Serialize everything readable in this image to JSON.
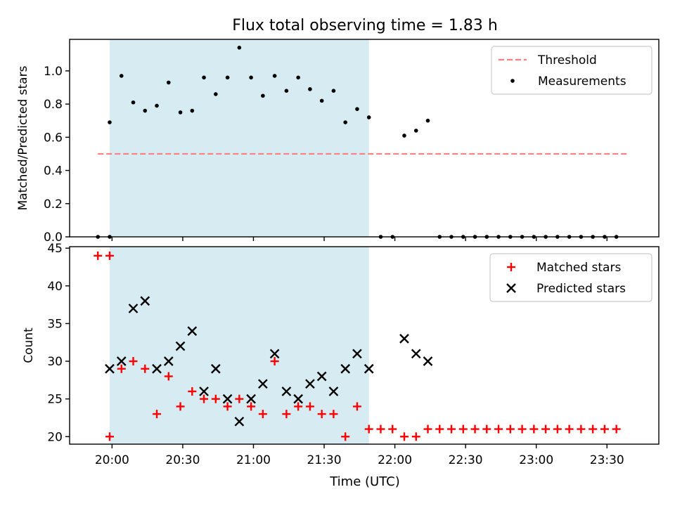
{
  "figure": {
    "title": "Flux total observing time = 1.83 h",
    "xlabel": "Time (UTC)"
  },
  "chart_data": [
    {
      "type": "scatter",
      "panel": "top",
      "title": "Flux total observing time = 1.83 h",
      "ylabel": "Matched/Predicted stars",
      "xlabel": "",
      "xlim": [
        "19:42",
        "23:52"
      ],
      "ylim": [
        0.0,
        1.19
      ],
      "yticks": [
        0.0,
        0.2,
        0.4,
        0.6,
        0.8,
        1.0
      ],
      "xticks": [
        "20:00",
        "20:30",
        "21:00",
        "21:30",
        "22:00",
        "22:30",
        "23:00",
        "23:30"
      ],
      "shaded_span": [
        "19:59",
        "21:49"
      ],
      "shaded_color": "#add8e6",
      "legend_position": "top-right",
      "threshold": {
        "name": "Threshold",
        "value": 0.5,
        "x_from": "19:54",
        "x_to": "23:39",
        "color": "#ff7f7f",
        "style": "dashed"
      },
      "series": [
        {
          "name": "Measurements",
          "marker": "dot",
          "color": "#000000",
          "points": [
            {
              "x": "19:54",
              "y": 0.0
            },
            {
              "x": "19:59",
              "y": 0.0
            },
            {
              "x": "19:59",
              "y": 0.69
            },
            {
              "x": "20:04",
              "y": 0.97
            },
            {
              "x": "20:09",
              "y": 0.81
            },
            {
              "x": "20:14",
              "y": 0.76
            },
            {
              "x": "20:19",
              "y": 0.79
            },
            {
              "x": "20:24",
              "y": 0.93
            },
            {
              "x": "20:29",
              "y": 0.75
            },
            {
              "x": "20:34",
              "y": 0.76
            },
            {
              "x": "20:39",
              "y": 0.96
            },
            {
              "x": "20:44",
              "y": 0.86
            },
            {
              "x": "20:49",
              "y": 0.96
            },
            {
              "x": "20:54",
              "y": 1.14
            },
            {
              "x": "20:59",
              "y": 0.96
            },
            {
              "x": "21:04",
              "y": 0.85
            },
            {
              "x": "21:09",
              "y": 0.97
            },
            {
              "x": "21:14",
              "y": 0.88
            },
            {
              "x": "21:19",
              "y": 0.96
            },
            {
              "x": "21:24",
              "y": 0.89
            },
            {
              "x": "21:29",
              "y": 0.82
            },
            {
              "x": "21:34",
              "y": 0.88
            },
            {
              "x": "21:39",
              "y": 0.69
            },
            {
              "x": "21:44",
              "y": 0.77
            },
            {
              "x": "21:49",
              "y": 0.72
            },
            {
              "x": "21:54",
              "y": 0.0
            },
            {
              "x": "21:59",
              "y": 0.0
            },
            {
              "x": "22:04",
              "y": 0.61
            },
            {
              "x": "22:09",
              "y": 0.64
            },
            {
              "x": "22:14",
              "y": 0.7
            },
            {
              "x": "22:19",
              "y": 0.0
            },
            {
              "x": "22:24",
              "y": 0.0
            },
            {
              "x": "22:29",
              "y": 0.0
            },
            {
              "x": "22:34",
              "y": 0.0
            },
            {
              "x": "22:39",
              "y": 0.0
            },
            {
              "x": "22:44",
              "y": 0.0
            },
            {
              "x": "22:49",
              "y": 0.0
            },
            {
              "x": "22:54",
              "y": 0.0
            },
            {
              "x": "22:59",
              "y": 0.0
            },
            {
              "x": "23:04",
              "y": 0.0
            },
            {
              "x": "23:09",
              "y": 0.0
            },
            {
              "x": "23:14",
              "y": 0.0
            },
            {
              "x": "23:19",
              "y": 0.0
            },
            {
              "x": "23:24",
              "y": 0.0
            },
            {
              "x": "23:29",
              "y": 0.0
            },
            {
              "x": "23:34",
              "y": 0.0
            }
          ]
        }
      ]
    },
    {
      "type": "scatter",
      "panel": "bottom",
      "title": "",
      "ylabel": "Count",
      "xlabel": "Time (UTC)",
      "xlim": [
        "19:42",
        "23:52"
      ],
      "ylim": [
        19.0,
        45.2
      ],
      "yticks": [
        20,
        25,
        30,
        35,
        40,
        45
      ],
      "xticks": [
        "20:00",
        "20:30",
        "21:00",
        "21:30",
        "22:00",
        "22:30",
        "23:00",
        "23:30"
      ],
      "shaded_span": [
        "19:59",
        "21:49"
      ],
      "shaded_color": "#add8e6",
      "legend_position": "top-right",
      "series": [
        {
          "name": "Matched stars",
          "marker": "plus",
          "color": "#ff0000",
          "points": [
            {
              "x": "19:54",
              "y": 44
            },
            {
              "x": "19:59",
              "y": 44
            },
            {
              "x": "19:59",
              "y": 20
            },
            {
              "x": "20:04",
              "y": 29
            },
            {
              "x": "20:09",
              "y": 30
            },
            {
              "x": "20:14",
              "y": 29
            },
            {
              "x": "20:19",
              "y": 23
            },
            {
              "x": "20:24",
              "y": 28
            },
            {
              "x": "20:29",
              "y": 24
            },
            {
              "x": "20:34",
              "y": 26
            },
            {
              "x": "20:39",
              "y": 25
            },
            {
              "x": "20:44",
              "y": 25
            },
            {
              "x": "20:49",
              "y": 24
            },
            {
              "x": "20:54",
              "y": 25
            },
            {
              "x": "20:59",
              "y": 24
            },
            {
              "x": "21:04",
              "y": 23
            },
            {
              "x": "21:09",
              "y": 30
            },
            {
              "x": "21:14",
              "y": 23
            },
            {
              "x": "21:19",
              "y": 24
            },
            {
              "x": "21:24",
              "y": 24
            },
            {
              "x": "21:29",
              "y": 23
            },
            {
              "x": "21:34",
              "y": 23
            },
            {
              "x": "21:39",
              "y": 20
            },
            {
              "x": "21:44",
              "y": 24
            },
            {
              "x": "21:49",
              "y": 21
            },
            {
              "x": "21:54",
              "y": 21
            },
            {
              "x": "21:59",
              "y": 21
            },
            {
              "x": "22:04",
              "y": 20
            },
            {
              "x": "22:09",
              "y": 20
            },
            {
              "x": "22:14",
              "y": 21
            },
            {
              "x": "22:19",
              "y": 21
            },
            {
              "x": "22:24",
              "y": 21
            },
            {
              "x": "22:29",
              "y": 21
            },
            {
              "x": "22:34",
              "y": 21
            },
            {
              "x": "22:39",
              "y": 21
            },
            {
              "x": "22:44",
              "y": 21
            },
            {
              "x": "22:49",
              "y": 21
            },
            {
              "x": "22:54",
              "y": 21
            },
            {
              "x": "22:59",
              "y": 21
            },
            {
              "x": "23:04",
              "y": 21
            },
            {
              "x": "23:09",
              "y": 21
            },
            {
              "x": "23:14",
              "y": 21
            },
            {
              "x": "23:19",
              "y": 21
            },
            {
              "x": "23:24",
              "y": 21
            },
            {
              "x": "23:29",
              "y": 21
            },
            {
              "x": "23:34",
              "y": 21
            }
          ]
        },
        {
          "name": "Predicted stars",
          "marker": "x",
          "color": "#000000",
          "points": [
            {
              "x": "19:59",
              "y": 29
            },
            {
              "x": "20:04",
              "y": 30
            },
            {
              "x": "20:09",
              "y": 37
            },
            {
              "x": "20:14",
              "y": 38
            },
            {
              "x": "20:19",
              "y": 29
            },
            {
              "x": "20:24",
              "y": 30
            },
            {
              "x": "20:29",
              "y": 32
            },
            {
              "x": "20:34",
              "y": 34
            },
            {
              "x": "20:39",
              "y": 26
            },
            {
              "x": "20:44",
              "y": 29
            },
            {
              "x": "20:49",
              "y": 25
            },
            {
              "x": "20:54",
              "y": 22
            },
            {
              "x": "20:59",
              "y": 25
            },
            {
              "x": "21:04",
              "y": 27
            },
            {
              "x": "21:09",
              "y": 31
            },
            {
              "x": "21:14",
              "y": 26
            },
            {
              "x": "21:19",
              "y": 25
            },
            {
              "x": "21:24",
              "y": 27
            },
            {
              "x": "21:29",
              "y": 28
            },
            {
              "x": "21:34",
              "y": 26
            },
            {
              "x": "21:39",
              "y": 29
            },
            {
              "x": "21:44",
              "y": 31
            },
            {
              "x": "21:49",
              "y": 29
            },
            {
              "x": "22:04",
              "y": 33
            },
            {
              "x": "22:09",
              "y": 31
            },
            {
              "x": "22:14",
              "y": 30
            }
          ]
        }
      ]
    }
  ]
}
